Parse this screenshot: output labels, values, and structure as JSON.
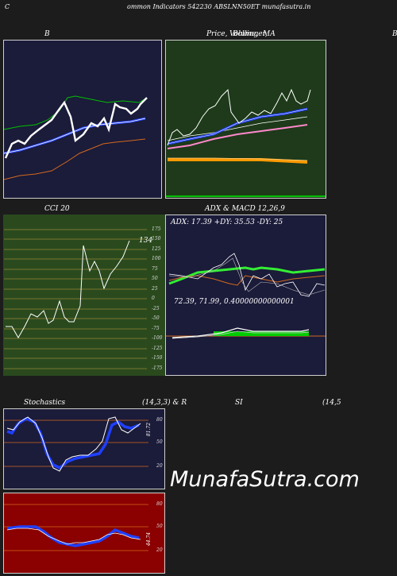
{
  "header": {
    "left_char": "C",
    "title": "ommon  Indicators 542230  ABSLNN50ET munafasutra.in",
    "right_char": "B"
  },
  "panels": {
    "bollinger": {
      "title": "B"
    },
    "price": {
      "title_a": "Price,",
      "title_b": "Volume,",
      "title_c": "Bollinger,",
      "title_d": "MA"
    },
    "cci": {
      "title": "CCI 20",
      "value_label": "134",
      "ticks": [
        "175",
        "150",
        "125",
        "100",
        "75",
        "50",
        "25",
        "0",
        "-25",
        "-50",
        "-75",
        "-100",
        "-125",
        "-150",
        "-175"
      ]
    },
    "adx": {
      "title": "ADX  & MACD 12,26,9",
      "readout": "ADX: 17.39  +DY: 35.53  -DY: 25",
      "macd_readout": "72.39,  71.99,  0.40000000000001"
    },
    "stochastics": {
      "title_left": "Stochastics",
      "title_mid": "(14,3,3) & R",
      "title_si": "SI",
      "title_right": "(14,5",
      "ticks": [
        "80",
        "50",
        "20"
      ],
      "value_label": "81.72"
    },
    "rsi": {
      "ticks": [
        "80",
        "50",
        "20"
      ],
      "value_label": "44.74"
    }
  },
  "watermark": "MunafaSutra.com",
  "colors": {
    "page_bg": "#1c1c1c",
    "navy_panel": "#1b1b3a",
    "green_panel": "#1e3a1a",
    "olive_panel": "#2a4a1e",
    "rsi_panel": "#8b0000",
    "orange_line": "#d2691e",
    "blue_line": "#1f3fff",
    "green_line": "#00c000"
  }
}
